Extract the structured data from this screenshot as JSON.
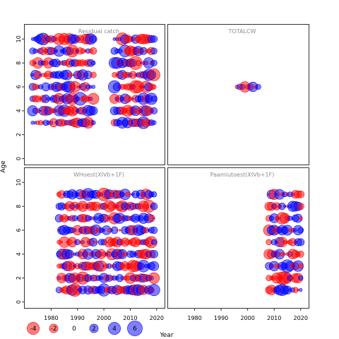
{
  "figure": {
    "xlabel": "Year",
    "ylabel": "Age"
  },
  "chart_data": {
    "type": "scatter",
    "encoding": "bubble plot of residuals: circle area proportional to |residual|, red = negative, blue = positive",
    "colors": {
      "negative": "#ff0000",
      "positive": "#0000ff",
      "fill_alpha": 0.5
    },
    "xlim": [
      1970,
      2023
    ],
    "ylim": [
      -0.5,
      11.2
    ],
    "xticks": [
      1980,
      1990,
      2000,
      2010,
      2020
    ],
    "yticks": [
      0,
      2,
      4,
      6,
      8,
      10
    ],
    "panels": [
      {
        "title": "Residual catch",
        "years": [
          1973,
          2019
        ],
        "gap": [
          1996,
          2004
        ],
        "ages": [
          3,
          4,
          5,
          6,
          7,
          8,
          9,
          10
        ]
      },
      {
        "title": "TOTALCW",
        "years": [
          1996,
          2004
        ],
        "ages": [
          6
        ]
      },
      {
        "title": "WHoest(XIVb+1F)",
        "years": [
          1983,
          2019
        ],
        "gap": [
          1997,
          1998
        ],
        "ages": [
          1,
          2,
          3,
          4,
          5,
          6,
          7,
          8,
          9
        ]
      },
      {
        "title": "Paamiutoest(XIVb+1F)",
        "years": [
          2008,
          2020
        ],
        "ages": [
          1,
          2,
          3,
          4,
          5,
          6,
          7,
          8,
          9
        ]
      }
    ],
    "legend": {
      "position": "bottom-left",
      "entries": [
        {
          "label": "-4",
          "value": -4
        },
        {
          "label": "-2",
          "value": -2
        },
        {
          "label": "0",
          "value": 0
        },
        {
          "label": "2",
          "value": 2
        },
        {
          "label": "4",
          "value": 4
        },
        {
          "label": "6",
          "value": 6
        }
      ]
    }
  }
}
